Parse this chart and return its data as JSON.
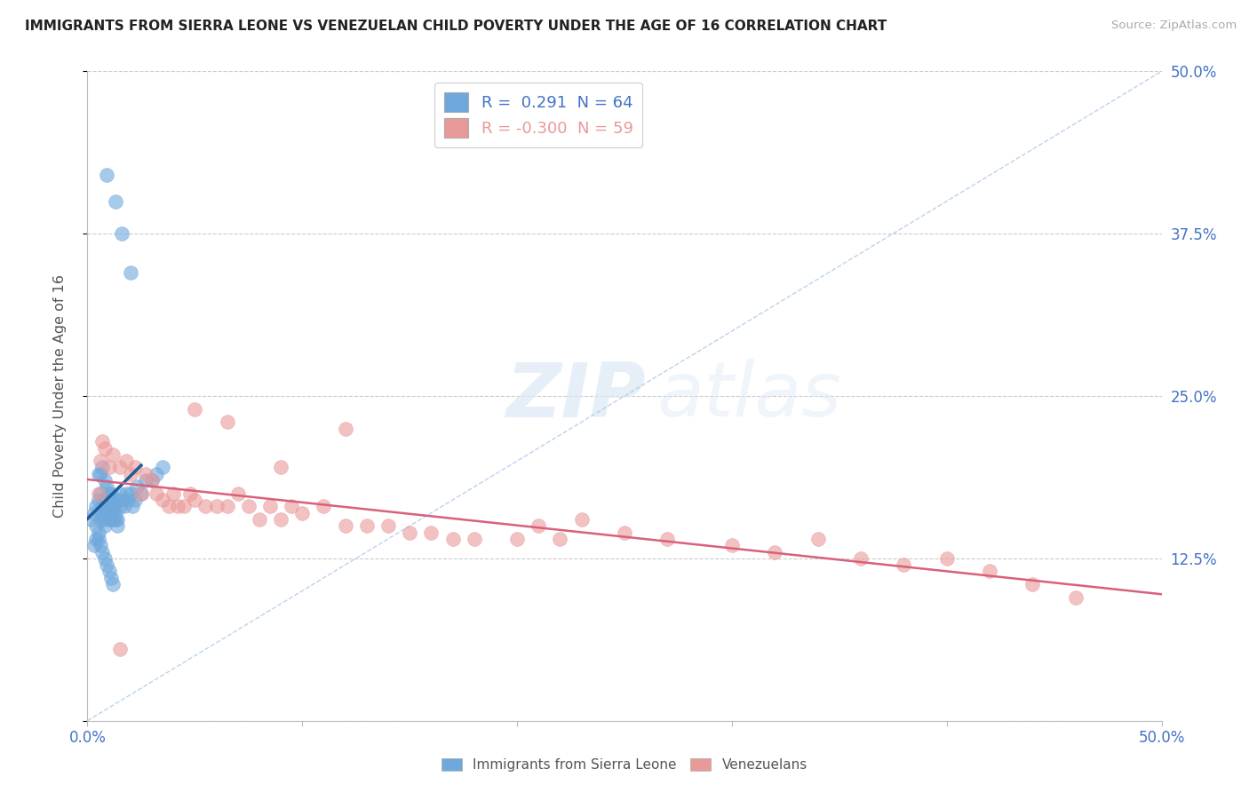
{
  "title": "IMMIGRANTS FROM SIERRA LEONE VS VENEZUELAN CHILD POVERTY UNDER THE AGE OF 16 CORRELATION CHART",
  "source": "Source: ZipAtlas.com",
  "ylabel": "Child Poverty Under the Age of 16",
  "blue_color": "#6fa8dc",
  "pink_color": "#ea9999",
  "blue_line_color": "#1f5c96",
  "pink_line_color": "#d9607a",
  "legend_label_blue": "Immigrants from Sierra Leone",
  "legend_label_pink": "Venezuelans",
  "R_blue": 0.291,
  "N_blue": 64,
  "R_pink": -0.3,
  "N_pink": 59,
  "xlim": [
    0.0,
    0.5
  ],
  "ylim": [
    0.0,
    0.5
  ],
  "watermark_zip": "ZIP",
  "watermark_atlas": "atlas",
  "background_color": "#ffffff",
  "grid_color": "#dddddd",
  "blue_x": [
    0.002,
    0.003,
    0.004,
    0.004,
    0.005,
    0.005,
    0.006,
    0.006,
    0.007,
    0.007,
    0.008,
    0.008,
    0.008,
    0.009,
    0.009,
    0.01,
    0.01,
    0.01,
    0.011,
    0.011,
    0.012,
    0.012,
    0.013,
    0.013,
    0.014,
    0.015,
    0.015,
    0.016,
    0.017,
    0.018,
    0.019,
    0.02,
    0.021,
    0.022,
    0.023,
    0.025,
    0.027,
    0.03,
    0.032,
    0.035,
    0.003,
    0.004,
    0.005,
    0.006,
    0.007,
    0.008,
    0.009,
    0.01,
    0.011,
    0.012,
    0.005,
    0.006,
    0.007,
    0.008,
    0.009,
    0.01,
    0.011,
    0.012,
    0.013,
    0.014,
    0.009,
    0.013,
    0.016,
    0.02
  ],
  "blue_y": [
    0.155,
    0.16,
    0.165,
    0.15,
    0.17,
    0.145,
    0.155,
    0.175,
    0.16,
    0.165,
    0.15,
    0.17,
    0.155,
    0.165,
    0.16,
    0.155,
    0.17,
    0.165,
    0.16,
    0.175,
    0.155,
    0.165,
    0.17,
    0.16,
    0.155,
    0.165,
    0.175,
    0.17,
    0.165,
    0.175,
    0.17,
    0.175,
    0.165,
    0.17,
    0.18,
    0.175,
    0.185,
    0.185,
    0.19,
    0.195,
    0.135,
    0.14,
    0.14,
    0.135,
    0.13,
    0.125,
    0.12,
    0.115,
    0.11,
    0.105,
    0.19,
    0.19,
    0.195,
    0.185,
    0.18,
    0.175,
    0.17,
    0.165,
    0.155,
    0.15,
    0.42,
    0.4,
    0.375,
    0.345
  ],
  "pink_x": [
    0.005,
    0.006,
    0.007,
    0.008,
    0.01,
    0.012,
    0.015,
    0.018,
    0.02,
    0.022,
    0.025,
    0.027,
    0.03,
    0.032,
    0.035,
    0.038,
    0.04,
    0.042,
    0.045,
    0.048,
    0.05,
    0.055,
    0.06,
    0.065,
    0.07,
    0.075,
    0.08,
    0.085,
    0.09,
    0.095,
    0.1,
    0.11,
    0.12,
    0.13,
    0.14,
    0.15,
    0.16,
    0.17,
    0.18,
    0.2,
    0.21,
    0.22,
    0.23,
    0.25,
    0.27,
    0.3,
    0.32,
    0.34,
    0.36,
    0.38,
    0.4,
    0.42,
    0.44,
    0.46,
    0.05,
    0.065,
    0.09,
    0.12,
    0.015
  ],
  "pink_y": [
    0.175,
    0.2,
    0.215,
    0.21,
    0.195,
    0.205,
    0.195,
    0.2,
    0.19,
    0.195,
    0.175,
    0.19,
    0.185,
    0.175,
    0.17,
    0.165,
    0.175,
    0.165,
    0.165,
    0.175,
    0.17,
    0.165,
    0.165,
    0.165,
    0.175,
    0.165,
    0.155,
    0.165,
    0.155,
    0.165,
    0.16,
    0.165,
    0.15,
    0.15,
    0.15,
    0.145,
    0.145,
    0.14,
    0.14,
    0.14,
    0.15,
    0.14,
    0.155,
    0.145,
    0.14,
    0.135,
    0.13,
    0.14,
    0.125,
    0.12,
    0.125,
    0.115,
    0.105,
    0.095,
    0.24,
    0.23,
    0.195,
    0.225,
    0.055
  ]
}
